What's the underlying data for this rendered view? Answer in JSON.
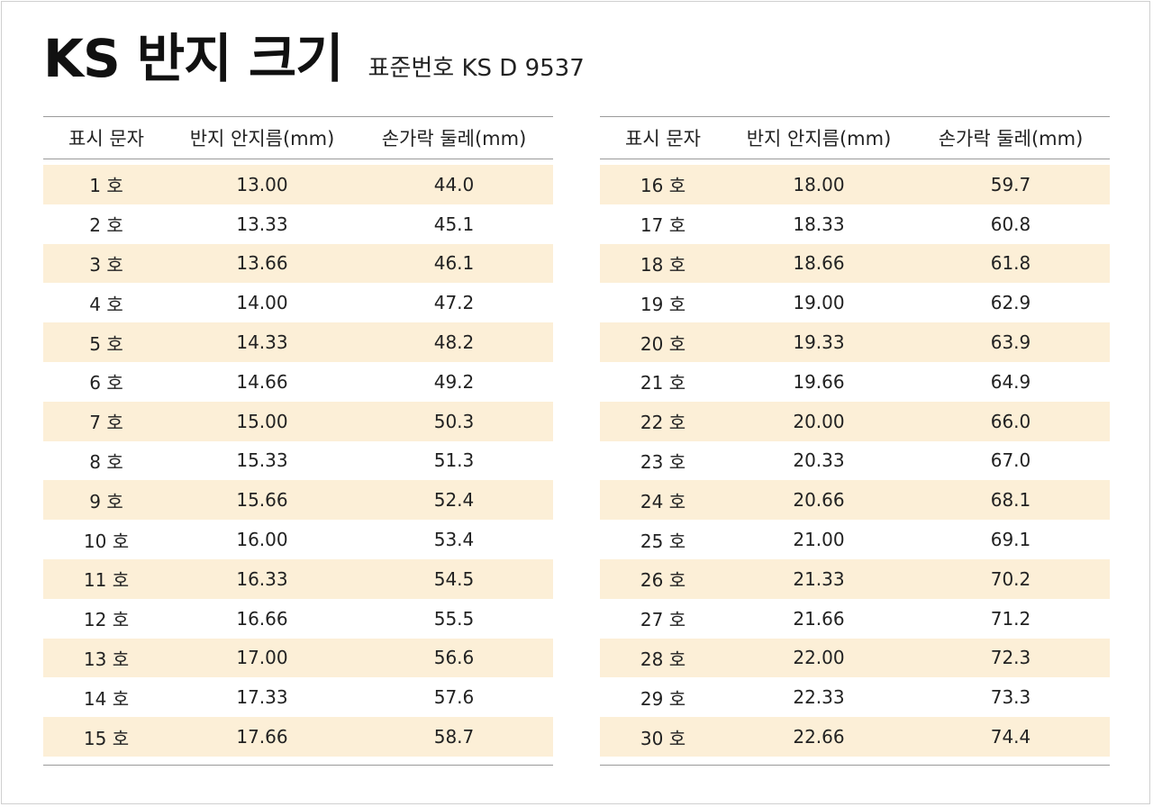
{
  "title": "KS 반지 크기",
  "subtitle": "표준번호 KS D 9537",
  "headers": {
    "col1": "표시 문자",
    "col2": "반지 안지름(mm)",
    "col3": "손가락 둘레(mm)"
  },
  "left_rows": [
    {
      "mark": "1 호",
      "diameter": "13.00",
      "circumference": "44.0"
    },
    {
      "mark": "2 호",
      "diameter": "13.33",
      "circumference": "45.1"
    },
    {
      "mark": "3 호",
      "diameter": "13.66",
      "circumference": "46.1"
    },
    {
      "mark": "4 호",
      "diameter": "14.00",
      "circumference": "47.2"
    },
    {
      "mark": "5 호",
      "diameter": "14.33",
      "circumference": "48.2"
    },
    {
      "mark": "6 호",
      "diameter": "14.66",
      "circumference": "49.2"
    },
    {
      "mark": "7 호",
      "diameter": "15.00",
      "circumference": "50.3"
    },
    {
      "mark": "8 호",
      "diameter": "15.33",
      "circumference": "51.3"
    },
    {
      "mark": "9 호",
      "diameter": "15.66",
      "circumference": "52.4"
    },
    {
      "mark": "10 호",
      "diameter": "16.00",
      "circumference": "53.4"
    },
    {
      "mark": "11 호",
      "diameter": "16.33",
      "circumference": "54.5"
    },
    {
      "mark": "12 호",
      "diameter": "16.66",
      "circumference": "55.5"
    },
    {
      "mark": "13 호",
      "diameter": "17.00",
      "circumference": "56.6"
    },
    {
      "mark": "14 호",
      "diameter": "17.33",
      "circumference": "57.6"
    },
    {
      "mark": "15 호",
      "diameter": "17.66",
      "circumference": "58.7"
    }
  ],
  "right_rows": [
    {
      "mark": "16 호",
      "diameter": "18.00",
      "circumference": "59.7"
    },
    {
      "mark": "17 호",
      "diameter": "18.33",
      "circumference": "60.8"
    },
    {
      "mark": "18 호",
      "diameter": "18.66",
      "circumference": "61.8"
    },
    {
      "mark": "19 호",
      "diameter": "19.00",
      "circumference": "62.9"
    },
    {
      "mark": "20 호",
      "diameter": "19.33",
      "circumference": "63.9"
    },
    {
      "mark": "21 호",
      "diameter": "19.66",
      "circumference": "64.9"
    },
    {
      "mark": "22 호",
      "diameter": "20.00",
      "circumference": "66.0"
    },
    {
      "mark": "23 호",
      "diameter": "20.33",
      "circumference": "67.0"
    },
    {
      "mark": "24 호",
      "diameter": "20.66",
      "circumference": "68.1"
    },
    {
      "mark": "25 호",
      "diameter": "21.00",
      "circumference": "69.1"
    },
    {
      "mark": "26 호",
      "diameter": "21.33",
      "circumference": "70.2"
    },
    {
      "mark": "27 호",
      "diameter": "21.66",
      "circumference": "71.2"
    },
    {
      "mark": "28 호",
      "diameter": "22.00",
      "circumference": "72.3"
    },
    {
      "mark": "29 호",
      "diameter": "22.33",
      "circumference": "73.3"
    },
    {
      "mark": "30 호",
      "diameter": "22.66",
      "circumference": "74.4"
    }
  ],
  "colors": {
    "shaded_row": "#fcefd7",
    "rule": "#9a9a9a",
    "text": "#222222"
  }
}
